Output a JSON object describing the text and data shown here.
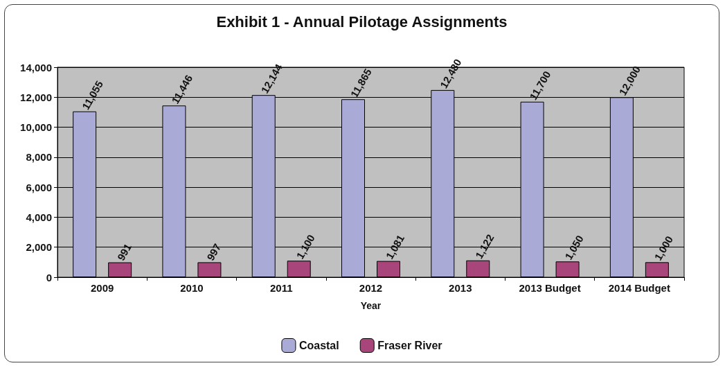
{
  "chart_data": {
    "type": "bar",
    "title": "Exhibit 1 - Annual Pilotage Assignments",
    "xlabel": "Year",
    "categories": [
      "2009",
      "2010",
      "2011",
      "2012",
      "2013",
      "2013 Budget",
      "2014 Budget"
    ],
    "series": [
      {
        "name": "Coastal",
        "color": "#aaaad6",
        "values": [
          11055,
          11446,
          12144,
          11865,
          12480,
          11700,
          12000
        ],
        "value_labels": [
          "11,055",
          "11,446",
          "12,144",
          "11,865",
          "12,480",
          "11,700",
          "12,000"
        ]
      },
      {
        "name": "Fraser River",
        "color": "#a8457a",
        "values": [
          991,
          997,
          1100,
          1081,
          1122,
          1050,
          1000
        ],
        "value_labels": [
          "991",
          "997",
          "1,100",
          "1,081",
          "1,122",
          "1,050",
          "1,000"
        ]
      }
    ],
    "ylim": [
      0,
      14000
    ],
    "yticks": [
      {
        "value": 0,
        "label": "0"
      },
      {
        "value": 2000,
        "label": "2,000"
      },
      {
        "value": 4000,
        "label": "4,000"
      },
      {
        "value": 6000,
        "label": "6,000"
      },
      {
        "value": 8000,
        "label": "8,000"
      },
      {
        "value": 10000,
        "label": "10,000"
      },
      {
        "value": 12000,
        "label": "12,000"
      },
      {
        "value": 14000,
        "label": "14,000"
      }
    ],
    "grid": "y",
    "legend": "bottom"
  }
}
